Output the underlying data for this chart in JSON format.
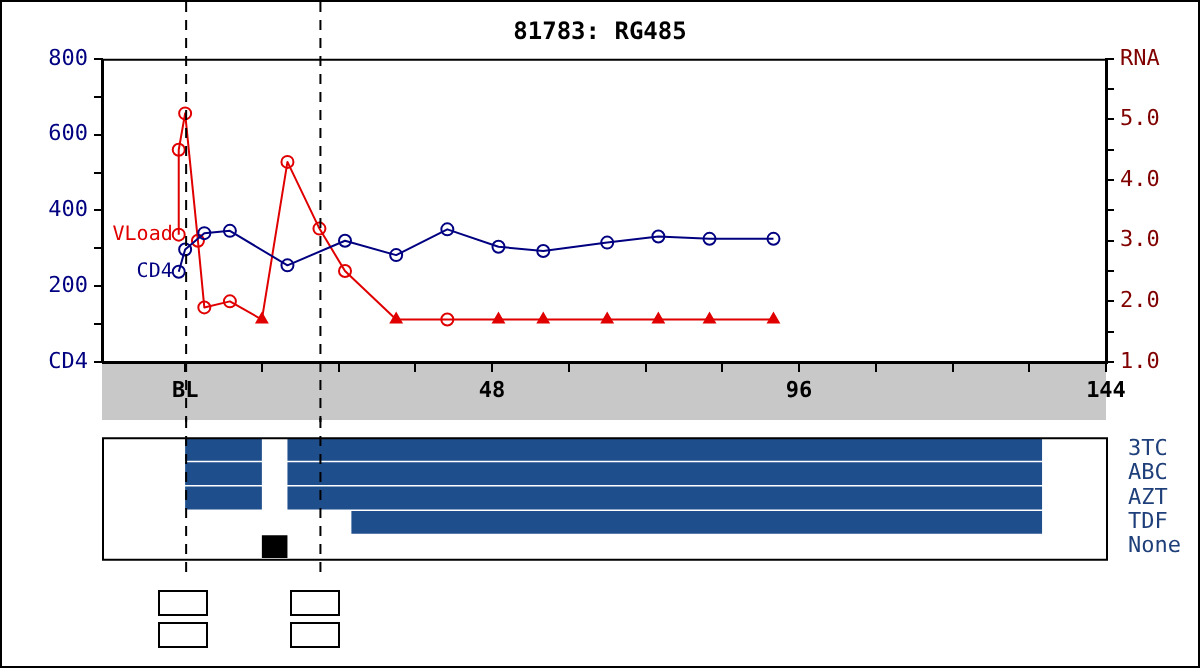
{
  "chart_data": [
    {
      "type": "line",
      "title": "81783: RG485",
      "xlim": [
        -13,
        144
      ],
      "xticks": [
        {
          "value": 0,
          "label": "BL"
        },
        {
          "value": 12,
          "label": null
        },
        {
          "value": 24,
          "label": null
        },
        {
          "value": 36,
          "label": null
        },
        48,
        {
          "value": 60,
          "label": null
        },
        {
          "value": 72,
          "label": null
        },
        {
          "value": 84,
          "label": null
        },
        96,
        {
          "value": 108,
          "label": null
        },
        {
          "value": 120,
          "label": null
        },
        {
          "value": 132,
          "label": null
        },
        144
      ],
      "ylim": [
        0,
        800
      ],
      "yticks": [
        {
          "value": 0,
          "label": "CD4"
        },
        {
          "value": 100,
          "label": null
        },
        200,
        {
          "value": 300,
          "label": null
        },
        400,
        {
          "value": 500,
          "label": null
        },
        600,
        {
          "value": 700,
          "label": null
        },
        800
      ],
      "y2lim": [
        1,
        6
      ],
      "y2ticks": [
        {
          "value": 1,
          "label": "1.0"
        },
        {
          "value": 1.5,
          "label": null
        },
        {
          "value": 2,
          "label": "2.0"
        },
        {
          "value": 2.5,
          "label": null
        },
        {
          "value": 3,
          "label": "3.0"
        },
        {
          "value": 3.5,
          "label": null
        },
        {
          "value": 4,
          "label": "4.0"
        },
        {
          "value": 4.5,
          "label": null
        },
        {
          "value": 5,
          "label": "5.0"
        },
        {
          "value": 5.5,
          "label": null
        },
        {
          "value": 6,
          "label": "RNA"
        }
      ],
      "series": [
        {
          "name": "CD4",
          "color": "#000080",
          "marker": "circle",
          "x": [
            -1,
            0,
            3,
            7,
            16,
            25,
            33,
            41,
            49,
            56,
            66,
            74,
            82,
            92
          ],
          "values": [
            238,
            297,
            340,
            346,
            255,
            320,
            282,
            350,
            304,
            293,
            315,
            331,
            325,
            325
          ]
        },
        {
          "name": "VLoad",
          "color": "#e00000",
          "axis": "y2",
          "marker": "none",
          "x": [
            -1,
            -1,
            0,
            2,
            3,
            7,
            12,
            16,
            21,
            25,
            33,
            41,
            49,
            56,
            66,
            74,
            82,
            92
          ],
          "values": [
            3.1,
            4.5,
            5.1,
            3.0,
            1.9,
            2.0,
            1.7,
            4.3,
            3.2,
            2.5,
            1.7,
            1.7,
            1.7,
            1.7,
            1.7,
            1.7,
            1.7,
            1.7
          ]
        },
        {
          "type": "scatter",
          "color": "#e00000",
          "axis": "y2",
          "marker": "circle",
          "x": [
            -1,
            -1,
            0,
            2,
            3,
            7,
            16,
            21,
            25,
            41
          ],
          "values": [
            3.1,
            4.5,
            5.1,
            3.0,
            1.9,
            2.0,
            4.3,
            3.2,
            2.5,
            1.7
          ]
        },
        {
          "type": "scatter",
          "color": "#e00000",
          "axis": "y2",
          "marker": "triangle",
          "x": [
            12,
            33,
            49,
            56,
            66,
            74,
            82,
            92
          ],
          "values": [
            1.7,
            1.7,
            1.7,
            1.7,
            1.7,
            1.7,
            1.7,
            1.7
          ]
        }
      ],
      "ref_lines": [
        {
          "axis": "x",
          "value": 0,
          "line_style": "dashed",
          "color": "#000000"
        },
        {
          "axis": "x",
          "value": 21,
          "line_style": "dashed",
          "color": "#000000"
        }
      ],
      "tick_labels": true,
      "grid": false,
      "legend": false
    },
    {
      "type": "bar",
      "orientation": "horizontal",
      "categories": [
        "3TC",
        "ABC",
        "AZT",
        "TDF",
        "None"
      ],
      "xlim": [
        -13,
        144
      ],
      "series": [
        {
          "color": "#1f4e8c",
          "base": [
            0,
            0,
            0,
            null,
            null
          ],
          "values": [
            12,
            12,
            12,
            null,
            null
          ]
        },
        {
          "color": "#1f4e8c",
          "base": [
            16,
            16,
            16,
            26,
            null
          ],
          "values": [
            118,
            118,
            118,
            108,
            null
          ]
        },
        {
          "color": "#000000",
          "base": [
            null,
            null,
            null,
            null,
            12
          ],
          "values": [
            null,
            null,
            null,
            null,
            4
          ]
        }
      ],
      "ref_lines": [
        {
          "axis": "x",
          "value": 0,
          "line_style": "dashed",
          "color": "#000000"
        },
        {
          "axis": "x",
          "value": 21,
          "line_style": "dashed",
          "color": "#000000"
        }
      ],
      "tick_labels": "y",
      "grid": false,
      "legend": false
    }
  ]
}
